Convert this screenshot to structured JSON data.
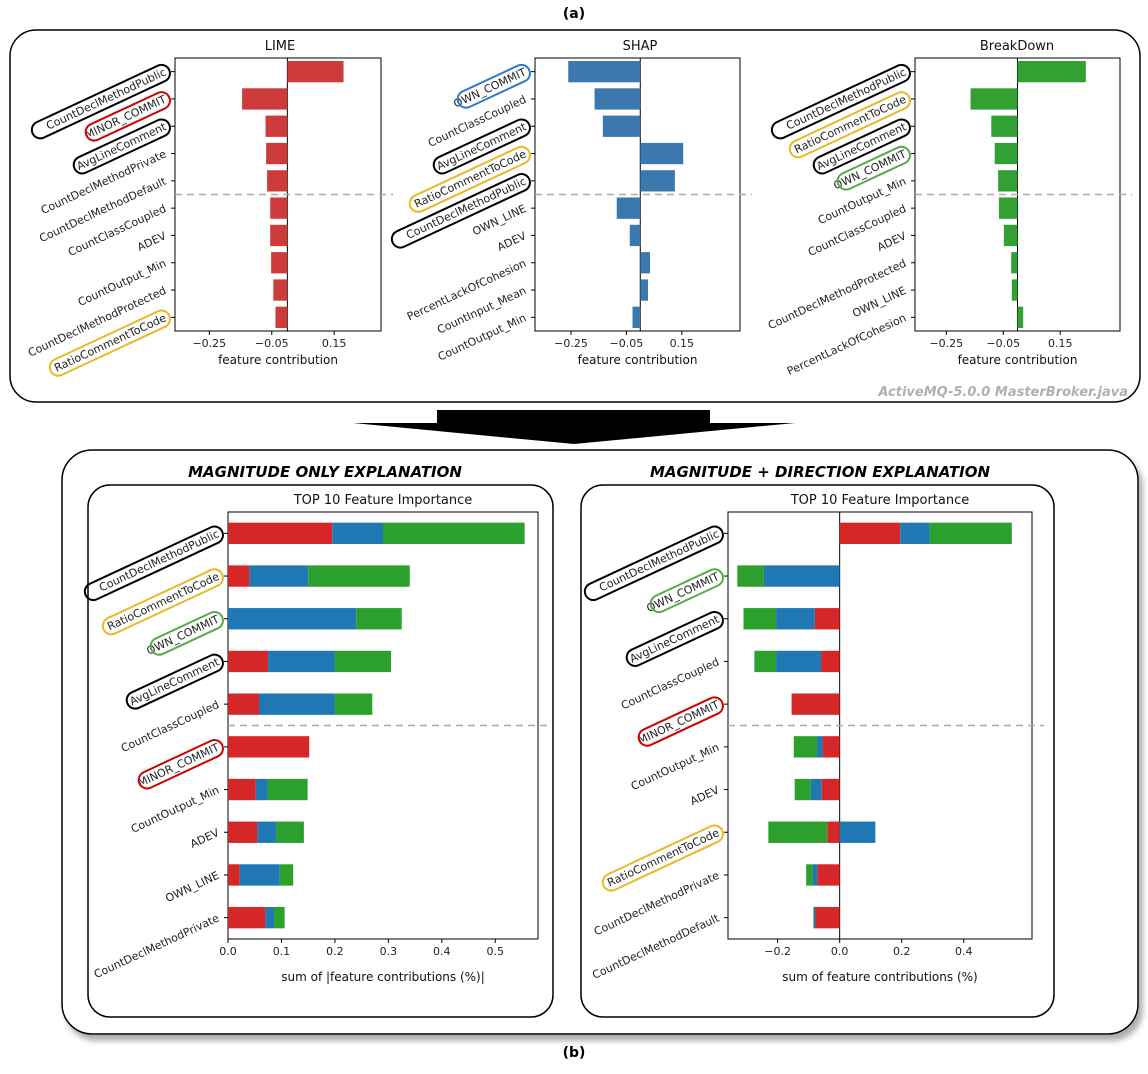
{
  "panel_a_label": "(a)",
  "panel_b_label": "(b)",
  "watermark": "ActiveMQ-5.0.0 MasterBroker.java",
  "colors": {
    "lime": "#cd3b3b",
    "shap": "#3a78ad",
    "breakdown": "#33a034",
    "bd_red": "#d62728",
    "bd_blue": "#1f77b4",
    "bd_green": "#2ca02c",
    "circle_black": "#000000",
    "circle_red": "#d00000",
    "circle_yellow": "#e8b923",
    "circle_blue": "#2b7bc4",
    "circle_green": "#5aa84a"
  },
  "section_titles": {
    "left": "MAGNITUDE ONLY EXPLANATION",
    "right": "MAGNITUDE + DIRECTION EXPLANATION"
  },
  "chart_data": [
    {
      "id": "lime",
      "type": "bar",
      "orientation": "horizontal",
      "title": "LIME",
      "xlabel": "feature contribution",
      "xticks": [
        -0.25,
        -0.05,
        0.15
      ],
      "xlim": [
        -0.36,
        0.3
      ],
      "categories": [
        "CountDeclMethodPublic",
        "MINOR_COMMIT",
        "AvgLineComment",
        "CountDeclMethodPrivate",
        "CountDeclMethodDefault",
        "CountClassCoupled",
        "ADEV",
        "CountOutput_Min",
        "CountDeclMethodProtected",
        "RatioCommentToCode"
      ],
      "values": [
        0.18,
        -0.145,
        -0.07,
        -0.068,
        -0.065,
        -0.055,
        -0.055,
        -0.052,
        -0.045,
        -0.038
      ],
      "highlights": {
        "CountDeclMethodPublic": "black",
        "MINOR_COMMIT": "red",
        "AvgLineComment": "black",
        "RatioCommentToCode": "yellow"
      },
      "divider_after": 5
    },
    {
      "id": "shap",
      "type": "bar",
      "orientation": "horizontal",
      "title": "SHAP",
      "xlabel": "feature contribution",
      "xticks": [
        -0.25,
        -0.05,
        0.15
      ],
      "xlim": [
        -0.38,
        0.36
      ],
      "categories": [
        "OWN_COMMIT",
        "CountClassCoupled",
        "AvgLineComment",
        "RatioCommentToCode",
        "CountDeclMethodPublic",
        "OWN_LINE",
        "ADEV",
        "PercentLackOfCohesion",
        "CountInput_Mean",
        "CountOutput_Min"
      ],
      "values": [
        -0.26,
        -0.165,
        -0.135,
        0.155,
        0.125,
        -0.085,
        -0.038,
        0.035,
        0.028,
        -0.028
      ],
      "highlights": {
        "OWN_COMMIT": "blue",
        "AvgLineComment": "black",
        "RatioCommentToCode": "yellow",
        "CountDeclMethodPublic": "black"
      },
      "divider_after": 5
    },
    {
      "id": "breakdown",
      "type": "bar",
      "orientation": "horizontal",
      "title": "BreakDown",
      "xlabel": "feature contribution",
      "xticks": [
        -0.25,
        -0.05,
        0.15
      ],
      "xlim": [
        -0.36,
        0.36
      ],
      "categories": [
        "CountDeclMethodPublic",
        "RatioCommentToCode",
        "AvgLineComment",
        "OWN_COMMIT",
        "CountOutput_Min",
        "CountClassCoupled",
        "ADEV",
        "CountDeclMethodProtected",
        "OWN_LINE",
        "PercentLackOfCohesion"
      ],
      "values": [
        0.24,
        -0.165,
        -0.092,
        -0.08,
        -0.068,
        -0.065,
        -0.048,
        -0.022,
        -0.02,
        0.02
      ],
      "highlights": {
        "CountDeclMethodPublic": "black",
        "RatioCommentToCode": "yellow",
        "AvgLineComment": "black",
        "OWN_COMMIT": "green"
      },
      "divider_after": 5
    },
    {
      "id": "magnitude",
      "type": "bar",
      "orientation": "horizontal",
      "stacked": true,
      "title": "TOP 10 Feature Importance",
      "xlabel": "sum of |feature contributions (%)|",
      "xticks": [
        0.0,
        0.1,
        0.2,
        0.3,
        0.4,
        0.5
      ],
      "xlim": [
        0,
        0.58
      ],
      "categories": [
        "CountDeclMethodPublic",
        "RatioCommentToCode",
        "OWN_COMMIT",
        "AvgLineComment",
        "CountClassCoupled",
        "MINOR_COMMIT",
        "CountOutput_Min",
        "ADEV",
        "OWN_LINE",
        "CountDeclMethodPrivate"
      ],
      "series": [
        {
          "color": "red",
          "values": [
            0.195,
            0.04,
            0.0,
            0.075,
            0.058,
            0.152,
            0.052,
            0.055,
            0.022,
            0.07
          ]
        },
        {
          "color": "blue",
          "values": [
            0.095,
            0.11,
            0.24,
            0.125,
            0.142,
            0.0,
            0.022,
            0.035,
            0.075,
            0.016
          ]
        },
        {
          "color": "green",
          "values": [
            0.265,
            0.19,
            0.085,
            0.105,
            0.07,
            0.0,
            0.075,
            0.052,
            0.025,
            0.02
          ]
        }
      ],
      "highlights": {
        "CountDeclMethodPublic": "black",
        "RatioCommentToCode": "yellow",
        "OWN_COMMIT": "green",
        "AvgLineComment": "black",
        "MINOR_COMMIT": "red"
      },
      "divider_after": 5
    },
    {
      "id": "direction",
      "type": "bar",
      "orientation": "horizontal",
      "stacked": true,
      "title": "TOP 10 Feature Importance",
      "xlabel": "sum of feature contributions (%)",
      "xticks": [
        -0.2,
        0.0,
        0.2,
        0.4
      ],
      "xlim": [
        -0.36,
        0.62
      ],
      "categories": [
        "CountDeclMethodPublic",
        "OWN_COMMIT",
        "AvgLineComment",
        "CountClassCoupled",
        "MINOR_COMMIT",
        "CountOutput_Min",
        "ADEV",
        "RatioCommentToCode",
        "CountDeclMethodPrivate",
        "CountDeclMethodDefault"
      ],
      "series": [
        {
          "color": "red",
          "values": [
            0.195,
            0.0,
            -0.08,
            -0.06,
            -0.155,
            -0.055,
            -0.058,
            -0.04,
            -0.072,
            -0.078
          ]
        },
        {
          "color": "blue",
          "values": [
            0.095,
            -0.245,
            -0.125,
            -0.145,
            0.0,
            -0.018,
            -0.035,
            0.115,
            -0.016,
            -0.005
          ]
        },
        {
          "color": "green",
          "values": [
            0.265,
            -0.085,
            -0.105,
            -0.07,
            0.0,
            -0.075,
            -0.052,
            -0.19,
            -0.02,
            -0.002
          ]
        }
      ],
      "highlights": {
        "CountDeclMethodPublic": "black",
        "OWN_COMMIT": "green",
        "AvgLineComment": "black",
        "MINOR_COMMIT": "red",
        "RatioCommentToCode": "yellow"
      },
      "divider_after": 5
    }
  ]
}
